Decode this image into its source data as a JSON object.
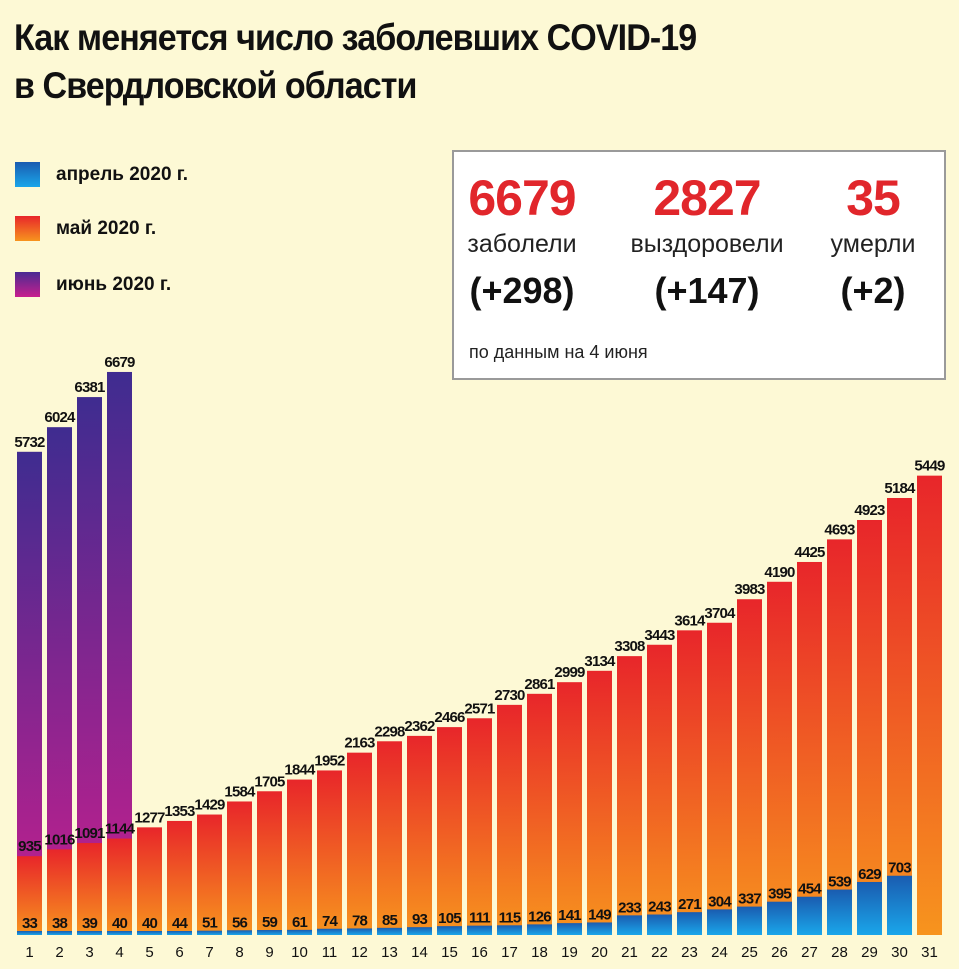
{
  "title_lines": [
    "Как  меняется число  заболевших COVID-19",
    "в Свердловской области"
  ],
  "legend": [
    {
      "label": "апрель 2020 г.",
      "color": "#1a8fd8"
    },
    {
      "label": "май 2020 г.",
      "color": "#f05a24"
    },
    {
      "label": "июнь 2020 г.",
      "color": "#8a2a9a"
    }
  ],
  "infobox": {
    "stats": [
      {
        "value": "6679",
        "label": "заболели",
        "delta": "(+298)"
      },
      {
        "value": "2827",
        "label": "выздоровели",
        "delta": "(+147)"
      },
      {
        "value": "35",
        "label": "умерли",
        "delta": "(+2)"
      }
    ],
    "note": "по данным на 4 июня"
  },
  "chart_data": {
    "type": "bar",
    "categories": [
      "1",
      "2",
      "3",
      "4",
      "5",
      "6",
      "7",
      "8",
      "9",
      "10",
      "11",
      "12",
      "13",
      "14",
      "15",
      "16",
      "17",
      "18",
      "19",
      "20",
      "21",
      "22",
      "23",
      "24",
      "25",
      "26",
      "27",
      "28",
      "29",
      "30",
      "31"
    ],
    "series": [
      {
        "name": "апрель 2020 г.",
        "values": [
          33,
          38,
          39,
          40,
          40,
          44,
          51,
          56,
          59,
          61,
          74,
          78,
          85,
          93,
          105,
          111,
          115,
          126,
          141,
          149,
          233,
          243,
          271,
          304,
          337,
          395,
          454,
          539,
          629,
          703,
          null
        ]
      },
      {
        "name": "май 2020 г.",
        "values": [
          935,
          1016,
          1091,
          1144,
          1277,
          1353,
          1429,
          1584,
          1705,
          1844,
          1952,
          2163,
          2298,
          2362,
          2466,
          2571,
          2730,
          2861,
          2999,
          3134,
          3308,
          3443,
          3614,
          3704,
          3983,
          4190,
          4425,
          4693,
          4923,
          5184,
          5449
        ]
      },
      {
        "name": "июнь 2020 г.",
        "values": [
          5732,
          6024,
          6381,
          6679,
          null,
          null,
          null,
          null,
          null,
          null,
          null,
          null,
          null,
          null,
          null,
          null,
          null,
          null,
          null,
          null,
          null,
          null,
          null,
          null,
          null,
          null,
          null,
          null,
          null,
          null,
          null
        ]
      }
    ],
    "overlapping": true,
    "grid": false,
    "legend_position": "top-left"
  }
}
